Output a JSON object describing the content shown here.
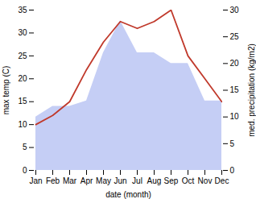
{
  "chart_data": {
    "type": "line",
    "categories": [
      "Jan",
      "Feb",
      "Mar",
      "Apr",
      "May",
      "Jun",
      "Jul",
      "Aug",
      "Sep",
      "Oct",
      "Nov",
      "Dec"
    ],
    "xlabel": "date (month)",
    "ylabel": "max temp (C)",
    "y2label": "med. precipitation (kg/m2)",
    "ylim": [
      0,
      35
    ],
    "yticks": [
      0,
      5,
      10,
      15,
      20,
      25,
      30,
      35
    ],
    "y2lim": [
      0,
      30
    ],
    "y2ticks": [
      0,
      5,
      10,
      15,
      20,
      25,
      30
    ],
    "series": [
      {
        "type": "area",
        "axis": "y2",
        "color": "#c5cef5",
        "values": [
          10,
          12,
          12,
          13,
          22,
          28,
          22,
          22,
          20,
          20,
          13,
          13
        ]
      },
      {
        "type": "line",
        "color": "#c0392b",
        "values": [
          10,
          12,
          15,
          22,
          28,
          32.5,
          31,
          32.5,
          35,
          25,
          20,
          15
        ]
      }
    ]
  }
}
